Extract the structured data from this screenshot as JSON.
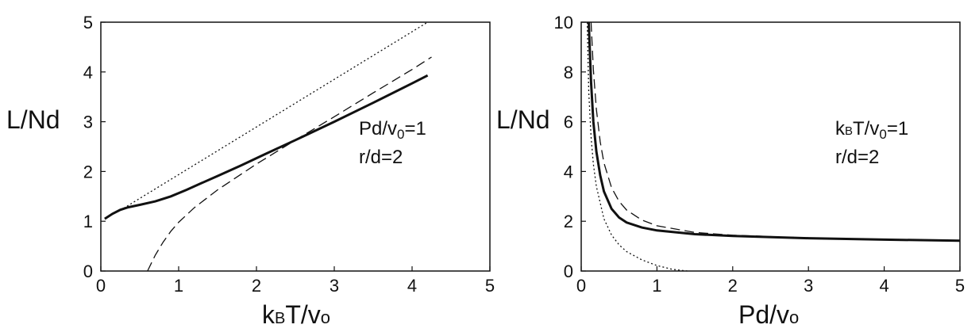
{
  "chart_data": [
    {
      "type": "line",
      "ylabel": "L/Nd",
      "xlabel": {
        "main": "k",
        "sub": "B",
        "rest": "T/v",
        "sub2": "o"
      },
      "xlim": [
        0,
        5
      ],
      "ylim": [
        0,
        5
      ],
      "xticks": [
        "0",
        "1",
        "2",
        "3",
        "4",
        "5"
      ],
      "yticks": [
        "0",
        "1",
        "2",
        "3",
        "4",
        "5"
      ],
      "annotation": {
        "line1": {
          "main": "Pd/v",
          "sub": "0",
          "rest": "=1"
        },
        "line2": "r/d=2"
      },
      "grid": false,
      "series": [
        {
          "style": "solid",
          "x": [
            0.05,
            0.15,
            0.25,
            0.35,
            0.5,
            0.7,
            0.9,
            1.1,
            1.3,
            1.5,
            1.8,
            2.1,
            2.5,
            3.0,
            3.5,
            4.0,
            4.2
          ],
          "y": [
            1.05,
            1.15,
            1.23,
            1.28,
            1.33,
            1.4,
            1.5,
            1.63,
            1.77,
            1.91,
            2.12,
            2.34,
            2.63,
            3.0,
            3.38,
            3.77,
            3.93
          ]
        },
        {
          "style": "dotted",
          "x": [
            0.25,
            4.2
          ],
          "y": [
            1.22,
            5.0
          ]
        },
        {
          "style": "dashed",
          "x": [
            0.6,
            0.7,
            0.8,
            0.9,
            1.0,
            1.2,
            1.5,
            2.0,
            2.5,
            3.0,
            3.5,
            4.0,
            4.25
          ],
          "y": [
            0.0,
            0.32,
            0.58,
            0.8,
            0.98,
            1.27,
            1.63,
            2.15,
            2.63,
            3.1,
            3.58,
            4.05,
            4.3
          ]
        }
      ]
    },
    {
      "type": "line",
      "ylabel": "L/Nd",
      "xlabel": {
        "main": "Pd/v",
        "sub": "o"
      },
      "xlim": [
        0,
        5
      ],
      "ylim": [
        0,
        10
      ],
      "xticks": [
        "0",
        "1",
        "2",
        "3",
        "4",
        "5"
      ],
      "yticks": [
        "0",
        "2",
        "4",
        "6",
        "8",
        "10"
      ],
      "annotation": {
        "line1": {
          "main": "k",
          "sub": "B",
          "rest": "T/v",
          "sub2": "0",
          "rest2": "=1"
        },
        "line2": "r/d=2"
      },
      "grid": false,
      "series": [
        {
          "style": "solid",
          "x": [
            0.1,
            0.13,
            0.16,
            0.2,
            0.25,
            0.3,
            0.4,
            0.5,
            0.6,
            0.8,
            1.0,
            1.5,
            2.0,
            3.0,
            4.0,
            5.0
          ],
          "y": [
            10.0,
            7.6,
            6.0,
            4.8,
            3.85,
            3.2,
            2.5,
            2.15,
            1.95,
            1.75,
            1.63,
            1.48,
            1.41,
            1.32,
            1.26,
            1.22
          ]
        },
        {
          "style": "dotted",
          "x": [
            0.08,
            0.1,
            0.13,
            0.16,
            0.2,
            0.3,
            0.4,
            0.5,
            0.6,
            0.8,
            1.0,
            1.2,
            1.4
          ],
          "y": [
            10.0,
            7.2,
            5.4,
            4.3,
            3.4,
            2.1,
            1.45,
            1.05,
            0.78,
            0.45,
            0.22,
            0.07,
            0.0
          ]
        },
        {
          "style": "dashed",
          "x": [
            0.13,
            0.16,
            0.2,
            0.25,
            0.3,
            0.4,
            0.5,
            0.6,
            0.8,
            1.0,
            1.5,
            2.0,
            3.0,
            4.0,
            5.0
          ],
          "y": [
            10.0,
            8.1,
            6.5,
            5.2,
            4.35,
            3.35,
            2.8,
            2.45,
            2.05,
            1.82,
            1.55,
            1.44,
            1.33,
            1.27,
            1.23
          ]
        }
      ]
    }
  ]
}
